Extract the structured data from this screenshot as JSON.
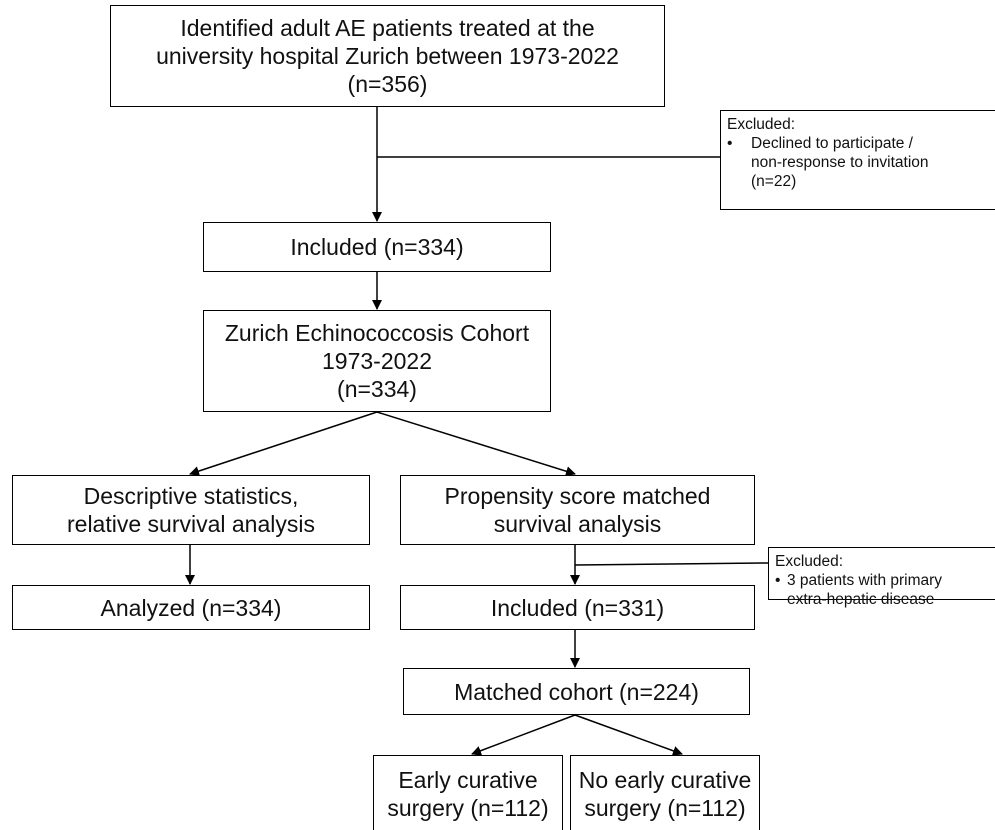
{
  "nodes": [
    {
      "lines": [
        "Identified adult AE patients treated at the",
        "university hospital Zurich between 1973-2022",
        "(n=356)"
      ]
    },
    {
      "lines": [
        "Included (n=334)"
      ]
    },
    {
      "lines": [
        "Zurich Echinococcosis Cohort",
        "1973-2022",
        "(n=334)"
      ]
    },
    {
      "lines": [
        "Descriptive statistics,",
        "relative survival analysis"
      ]
    },
    {
      "lines": [
        "Analyzed (n=334)"
      ]
    },
    {
      "lines": [
        "Propensity score matched",
        "survival analysis"
      ]
    },
    {
      "lines": [
        "Included (n=331)"
      ]
    },
    {
      "lines": [
        "Matched cohort (n=224)"
      ]
    },
    {
      "lines": [
        "Early curative",
        "surgery (n=112)"
      ]
    },
    {
      "lines": [
        "No early curative",
        "surgery (n=112)"
      ]
    }
  ],
  "exclusions": [
    {
      "heading": "Excluded:",
      "marker": "•",
      "lines": [
        "Declined to participate /",
        "non-response to invitation",
        "(n=22)"
      ]
    },
    {
      "heading": "Excluded:",
      "marker": "•",
      "lines": [
        "3 patients with primary",
        "extra-hepatic disease"
      ]
    }
  ]
}
